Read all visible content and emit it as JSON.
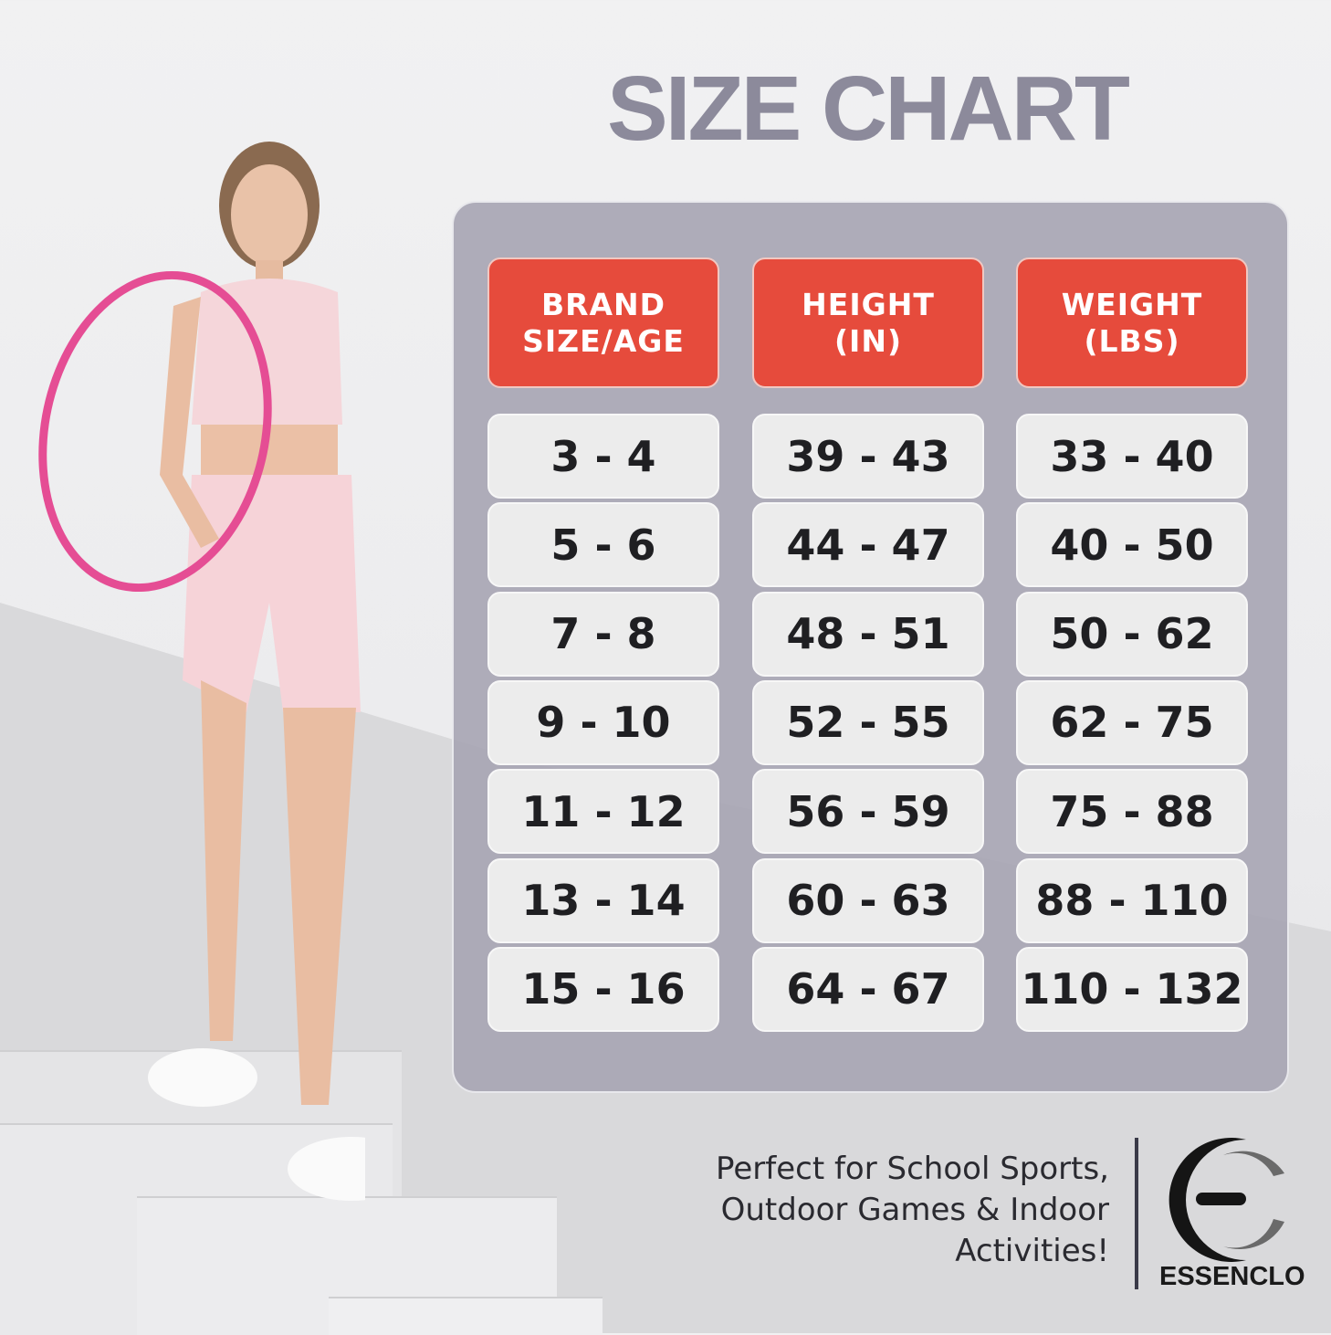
{
  "title": "SIZE CHART",
  "table": {
    "headers": [
      [
        "BRAND",
        "SIZE/AGE"
      ],
      [
        "HEIGHT",
        "(IN)"
      ],
      [
        "WEIGHT",
        "(LBS)"
      ]
    ],
    "rows": [
      [
        "3 - 4",
        "39 - 43",
        "33 - 40"
      ],
      [
        "5 - 6",
        "44 - 47",
        "40 - 50"
      ],
      [
        "7 - 8",
        "48 - 51",
        "50 - 62"
      ],
      [
        "9 - 10",
        "52 - 55",
        "62 - 75"
      ],
      [
        "11 - 12",
        "56 - 59",
        "75 - 88"
      ],
      [
        "13 - 14",
        "60 - 63",
        "88 - 110"
      ],
      [
        "15 - 16",
        "64 - 67",
        "110 - 132"
      ]
    ]
  },
  "tagline": [
    "Perfect for School Sports,",
    "Outdoor Games & Indoor",
    "Activities!"
  ],
  "brand": "ESSENCLO",
  "colors": {
    "header": "#e64b3c",
    "panel": "#a8a6b4",
    "title": "#8c8a9b",
    "hoop": "#e54d94"
  }
}
